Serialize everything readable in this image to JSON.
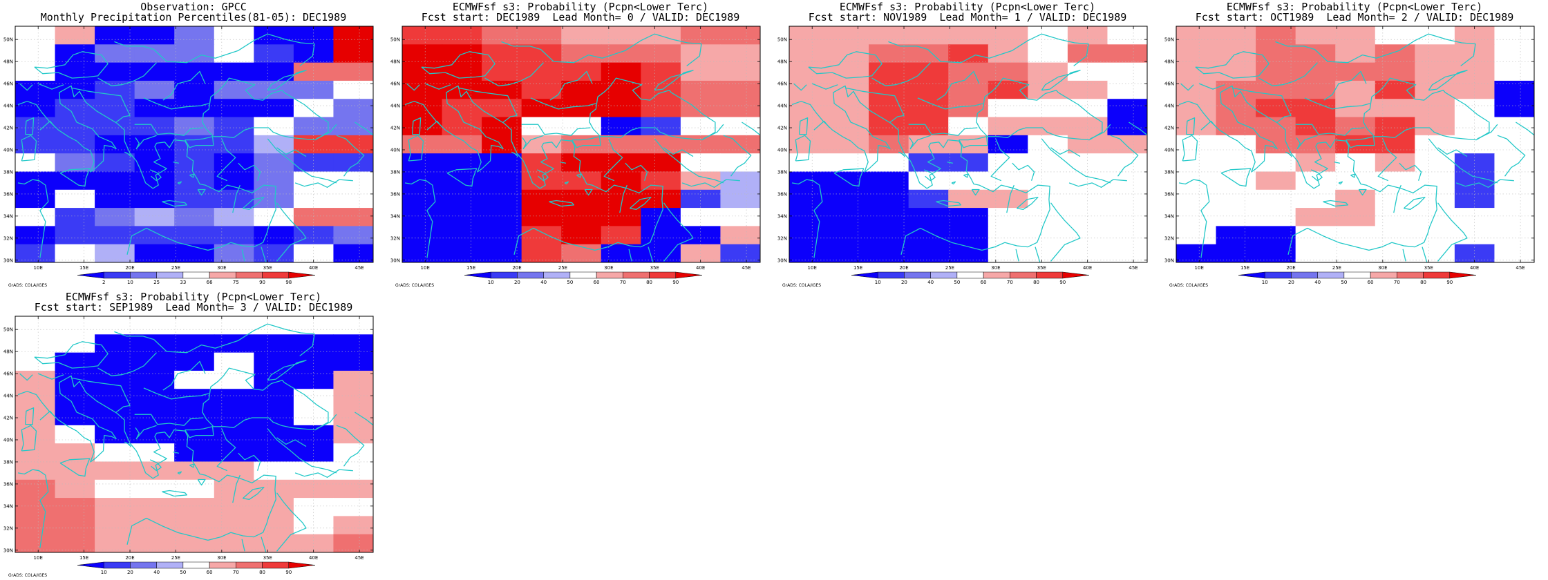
{
  "colors": {
    "bins_forecast": [
      "#0c00fb",
      "#3b3bf5",
      "#7575ef",
      "#b0b0f7",
      "#ffffff",
      "#f6a8a8",
      "#ef7070",
      "#ef3a3a",
      "#e60000"
    ],
    "bins_observed": [
      "#0c00fb",
      "#3b3bf5",
      "#7575ef",
      "#b0b0f7",
      "#ffffff",
      "#f6a8a8",
      "#ef7070",
      "#ef3a3a",
      "#e60000"
    ],
    "coast": "#22c8c8",
    "grid": "#bbbbbb"
  },
  "legend": {
    "observed_ticks": [
      "2",
      "10",
      "25",
      "33",
      "66",
      "75",
      "90",
      "98"
    ],
    "forecast_ticks": [
      "10",
      "20",
      "40",
      "50",
      "60",
      "70",
      "80",
      "90"
    ]
  },
  "axes": {
    "lat_ticks": [
      "30N",
      "32N",
      "34N",
      "36N",
      "38N",
      "40N",
      "42N",
      "44N",
      "46N",
      "48N",
      "50N"
    ],
    "lon_ticks": [
      "10E",
      "15E",
      "20E",
      "25E",
      "30E",
      "35E",
      "40E",
      "45E"
    ]
  },
  "credit": "GrADS: COLA/IGES",
  "panels": [
    {
      "title_line1": "Observation: GPCC",
      "title_line2": "Monthly Precipitation Percentiles(81-05): DEC1989",
      "legend_type": "observed",
      "grid": [
        "450024008",
        "402224108",
        "400000066",
        "001202224",
        "011000042",
        "111121422",
        "110011377",
        "421010211",
        "000010244",
        "040011244",
        "412323466",
        "011111012",
        "143002140"
      ]
    },
    {
      "title_line1": "ECMWFsf s3: Probability (Pcpn<Lower Terc)",
      "title_line2": "Fcst start: DEC1989  Lead Month= 0 / VALID: DEC1989",
      "legend_type": "forecast",
      "grid": [
        "776655566",
        "887766655",
        "887778755",
        "888788766",
        "877888766",
        "878440144",
        "668566666",
        "000788844",
        "000778753",
        "000888813",
        "000888044",
        "000787005",
        "000760051"
      ]
    },
    {
      "title_line1": "ECMWFsf s3: Probability (Pcpn<Lower Terc)",
      "title_line2": "Fcst start: NOV1989  Lead Month= 1 / VALID: DEC1989",
      "legend_type": "forecast",
      "grid": [
        "555555454",
        "556675466",
        "557766544",
        "557767554",
        "557764440",
        "557745550",
        "556550455",
        "444114444",
        "000444444",
        "000155444",
        "000004444",
        "000004444",
        "000004444"
      ]
    },
    {
      "title_line1": "ECMWFsf s3: Probability (Pcpn<Lower Terc)",
      "title_line2": "Fcst start: OCT1989  Lead Month= 2 / VALID: DEC1989",
      "legend_type": "forecast",
      "grid": [
        "556554454",
        "556656554",
        "556666554",
        "566657550",
        "567755540",
        "566767544",
        "446677444",
        "444545414",
        "445444414",
        "444454414",
        "444554444",
        "400444444",
        "000444414"
      ]
    },
    {
      "title_line1": "ECMWFsf s3: Probability (Pcpn<Lower Terc)",
      "title_line2": "Fcst start: SEP1989  Lead Month= 3 / VALID: DEC1989",
      "legend_type": "forecast",
      "grid": [
        "444444444",
        "440000000",
        "400004000",
        "500044005",
        "500000045",
        "500000045",
        "540000005",
        "554400004",
        "555555444",
        "654445555",
        "665555544",
        "665555545",
        "665555556"
      ]
    }
  ]
}
